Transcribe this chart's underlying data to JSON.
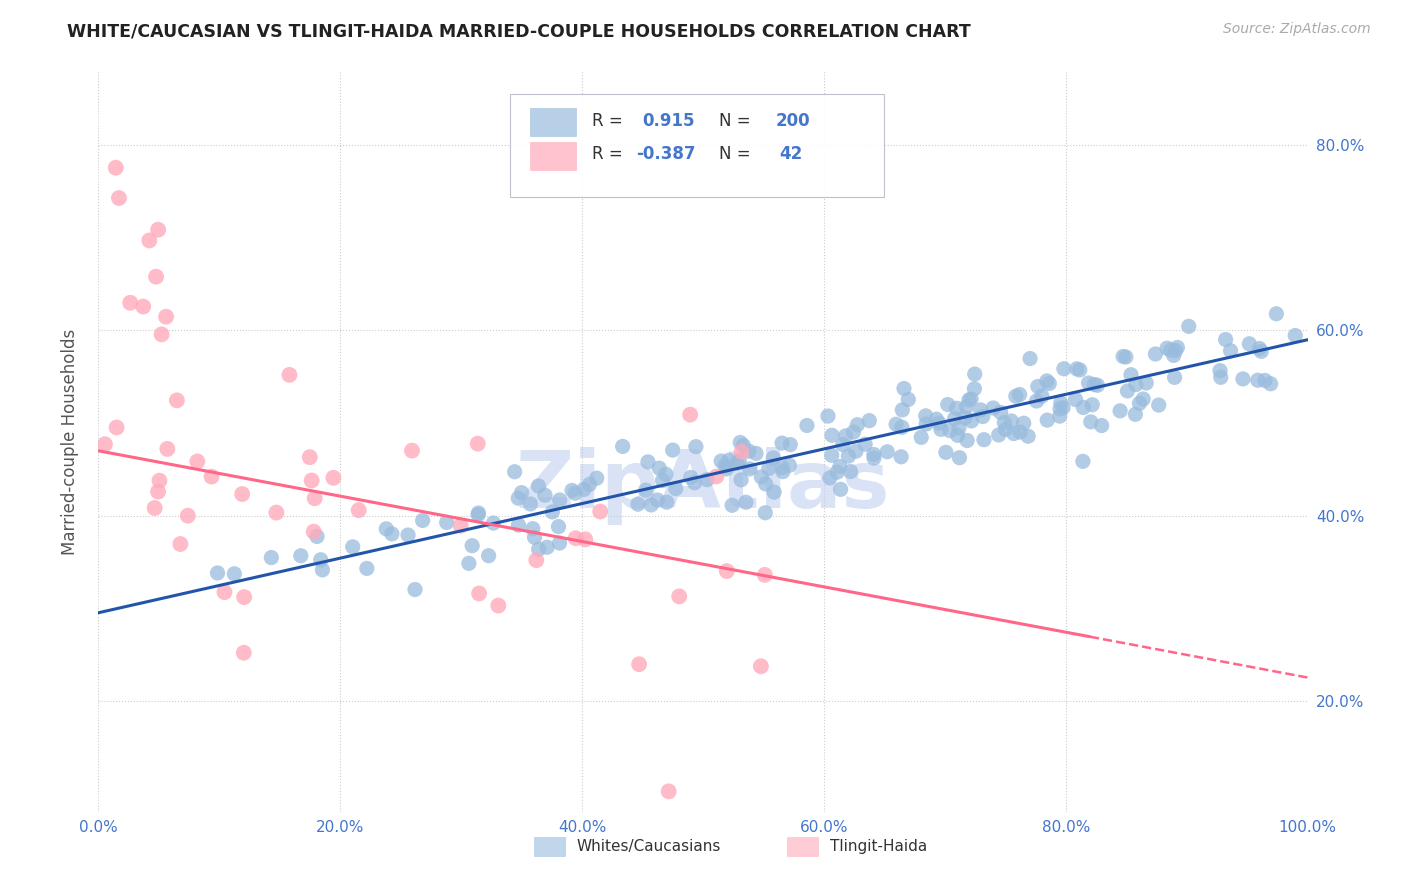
{
  "title": "WHITE/CAUCASIAN VS TLINGIT-HAIDA MARRIED-COUPLE HOUSEHOLDS CORRELATION CHART",
  "source": "Source: ZipAtlas.com",
  "ylabel_label": "Married-couple Households",
  "legend_label1": "Whites/Caucasians",
  "legend_label2": "Tlingit-Haida",
  "R_blue": "0.915",
  "N_blue": "200",
  "R_pink": "-0.387",
  "N_pink": "42",
  "blue_scatter_color": "#99BBDD",
  "pink_scatter_color": "#FFAABB",
  "blue_line_color": "#2255AA",
  "pink_line_color": "#FF6688",
  "title_color": "#222222",
  "source_color": "#AAAAAA",
  "axis_tick_color": "#4477CC",
  "ylabel_color": "#555555",
  "watermark_text": "ZipAtlas",
  "watermark_color": "#BBCCEE",
  "background_color": "#FFFFFF",
  "grid_color": "#CCCCCC",
  "grid_style": ":",
  "legend_box_color": "#CCCCDD",
  "slope_blue": 0.295,
  "intercept_blue": 0.295,
  "slope_pink": -0.245,
  "intercept_pink": 0.47,
  "noise_blue": 0.022,
  "noise_pink": 0.095,
  "seed_blue": 42,
  "seed_pink": 123
}
